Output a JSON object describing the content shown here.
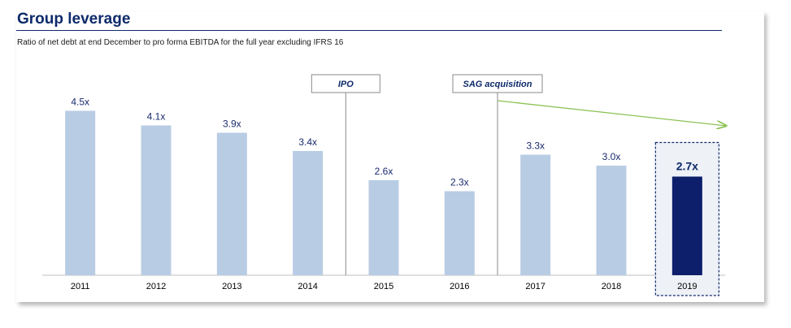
{
  "title": "Group leverage",
  "subtitle": "Ratio of net debt at end December to pro forma EBITDA for the full year excluding IFRS 16",
  "colors": {
    "bar": "#b8cce4",
    "bar_highlight": "#0d1f6b",
    "title": "#0d2a6b",
    "arrow": "#8cc153",
    "annotation_line": "#8a8a8a"
  },
  "chart_data": {
    "type": "bar",
    "title": "Group leverage",
    "subtitle": "Ratio of net debt at end December to pro forma EBITDA for the full year excluding IFRS 16",
    "categories": [
      "2011",
      "2012",
      "2013",
      "2014",
      "2015",
      "2016",
      "2017",
      "2018",
      "2019"
    ],
    "values": [
      4.5,
      4.1,
      3.9,
      3.4,
      2.6,
      2.3,
      3.3,
      3.0,
      2.7
    ],
    "labels": [
      "4.5x",
      "4.1x",
      "3.9x",
      "3.4x",
      "2.6x",
      "2.3x",
      "3.3x",
      "3.0x",
      "2.7x"
    ],
    "highlight_category": "2019",
    "xlabel": "",
    "ylabel": "",
    "ylim": [
      0,
      5
    ],
    "grid": false,
    "annotations": [
      {
        "text": "IPO",
        "between": [
          "2014",
          "2015"
        ]
      },
      {
        "text": "SAG acquisition",
        "between": [
          "2016",
          "2017"
        ]
      }
    ],
    "trend_arrow": {
      "from_category": "2017",
      "to_category": "2019",
      "direction": "down"
    }
  }
}
